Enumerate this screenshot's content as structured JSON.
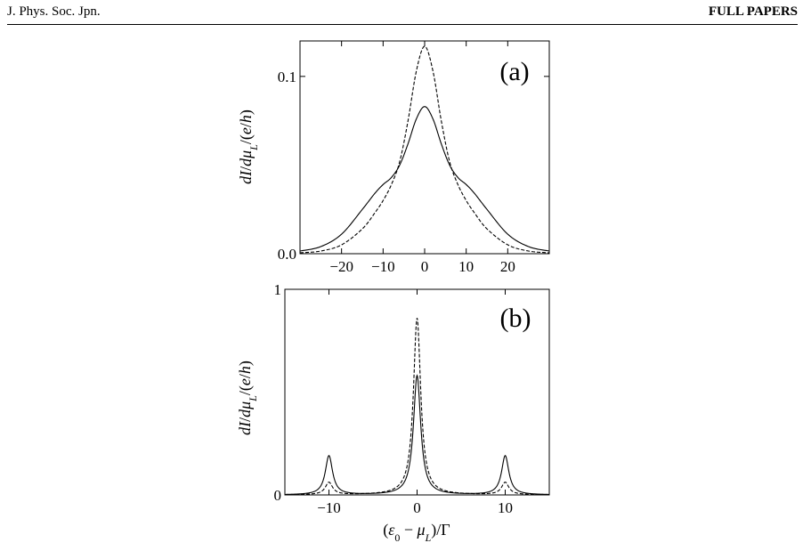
{
  "header": {
    "journal": "J. Phys. Soc. Jpn.",
    "section": "FULL PAPERS"
  },
  "chart_data": [
    {
      "type": "line",
      "panel_label": "(a)",
      "ylabel": "dI/dμ_L/(e/h)",
      "xlim": [
        -30,
        30
      ],
      "ylim": [
        0,
        0.12
      ],
      "x_ticks": [
        -20,
        -10,
        0,
        10,
        20
      ],
      "x_tick_labels": [
        "−20",
        "−10",
        "0",
        "10",
        "20"
      ],
      "y_ticks": [
        0,
        0.1
      ],
      "y_tick_labels": [
        "0.0",
        "0.1"
      ],
      "series": [
        {
          "style": "solid",
          "points": [
            [
              -30,
              0.0015
            ],
            [
              -25,
              0.004
            ],
            [
              -20,
              0.011
            ],
            [
              -15,
              0.025
            ],
            [
              -12,
              0.034
            ],
            [
              -10,
              0.039
            ],
            [
              -8,
              0.043
            ],
            [
              -6,
              0.05
            ],
            [
              -4,
              0.062
            ],
            [
              -2,
              0.076
            ],
            [
              0,
              0.083
            ],
            [
              2,
              0.076
            ],
            [
              4,
              0.062
            ],
            [
              6,
              0.05
            ],
            [
              8,
              0.043
            ],
            [
              10,
              0.039
            ],
            [
              12,
              0.034
            ],
            [
              15,
              0.025
            ],
            [
              20,
              0.011
            ],
            [
              25,
              0.004
            ],
            [
              30,
              0.0015
            ]
          ]
        },
        {
          "style": "dashed",
          "points": [
            [
              -30,
              0.0005
            ],
            [
              -25,
              0.0015
            ],
            [
              -20,
              0.005
            ],
            [
              -15,
              0.014
            ],
            [
              -12,
              0.023
            ],
            [
              -10,
              0.03
            ],
            [
              -8,
              0.039
            ],
            [
              -6,
              0.052
            ],
            [
              -4,
              0.075
            ],
            [
              -2,
              0.103
            ],
            [
              0,
              0.117
            ],
            [
              2,
              0.103
            ],
            [
              4,
              0.075
            ],
            [
              6,
              0.052
            ],
            [
              8,
              0.039
            ],
            [
              10,
              0.03
            ],
            [
              12,
              0.023
            ],
            [
              15,
              0.014
            ],
            [
              20,
              0.005
            ],
            [
              25,
              0.0015
            ],
            [
              30,
              0.0005
            ]
          ]
        }
      ]
    },
    {
      "type": "line",
      "panel_label": "(b)",
      "ylabel": "dI/dμ_L/(e/h)",
      "xlabel": "(ε₀ − μ_L)/Γ",
      "xlim": [
        -15,
        15
      ],
      "ylim": [
        0,
        1
      ],
      "x_ticks": [
        -10,
        0,
        10
      ],
      "x_tick_labels": [
        "−10",
        "0",
        "10"
      ],
      "y_ticks": [
        0,
        1
      ],
      "y_tick_labels": [
        "0",
        "1"
      ],
      "series": [
        {
          "style": "solid",
          "peaks": [
            {
              "center": -10,
              "height": 0.19,
              "halfwidth": 0.5
            },
            {
              "center": 0,
              "height": 0.58,
              "halfwidth": 0.5
            },
            {
              "center": 10,
              "height": 0.19,
              "halfwidth": 0.5
            }
          ]
        },
        {
          "style": "dashed",
          "peaks": [
            {
              "center": -10,
              "height": 0.06,
              "halfwidth": 0.5
            },
            {
              "center": 0,
              "height": 0.86,
              "halfwidth": 0.5
            },
            {
              "center": 10,
              "height": 0.06,
              "halfwidth": 0.5
            }
          ]
        }
      ]
    }
  ]
}
